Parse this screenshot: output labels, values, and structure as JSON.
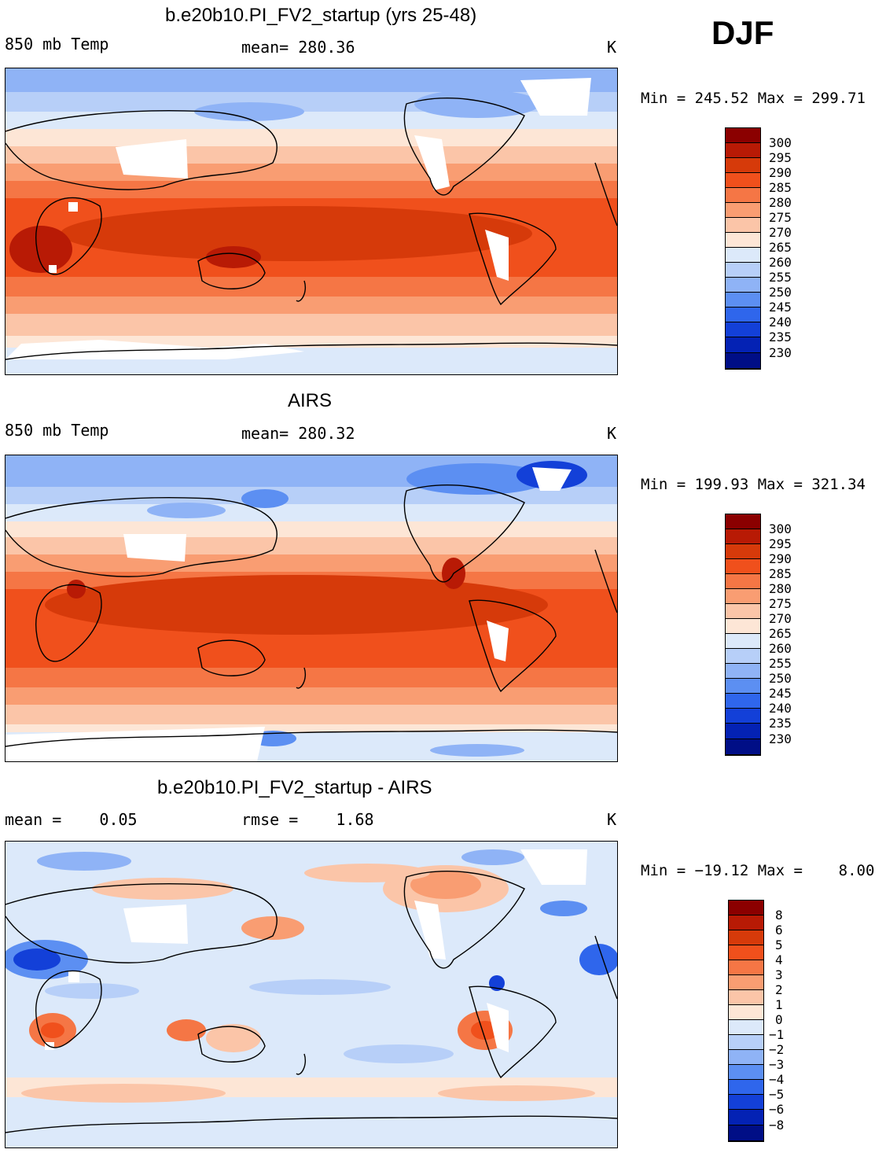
{
  "season": "DJF",
  "panels": [
    {
      "title": "b.e20b10.PI_FV2_startup (yrs 25-48)",
      "left_label": "850 mb Temp",
      "center_label": "mean= 280.36",
      "units": "K",
      "minmax": "Min = 245.52 Max = 299.71",
      "kind": "model"
    },
    {
      "title": "AIRS",
      "left_label": "850 mb Temp",
      "center_label": "mean= 280.32",
      "units": "K",
      "minmax": "Min = 199.93 Max = 321.34",
      "kind": "obs"
    },
    {
      "title": "b.e20b10.PI_FV2_startup - AIRS",
      "left_label": "mean =    0.05",
      "center_label": "rmse =    1.68",
      "units": "K",
      "minmax": "Min = −19.12 Max =    8.00",
      "kind": "diff"
    }
  ],
  "colorbars": {
    "temperature": {
      "labels": [
        "300",
        "295",
        "290",
        "285",
        "280",
        "275",
        "270",
        "265",
        "260",
        "255",
        "250",
        "245",
        "240",
        "235",
        "230"
      ],
      "colors": [
        "#8b0000",
        "#b81a05",
        "#d63a0a",
        "#f0501c",
        "#f57645",
        "#f99d72",
        "#fbc5a8",
        "#fde6d6",
        "#dce9fa",
        "#b7cff8",
        "#8fb3f6",
        "#5c8ff2",
        "#2f66ec",
        "#1340d8",
        "#0422b4",
        "#000e86"
      ]
    },
    "difference": {
      "labels": [
        "8",
        "6",
        "5",
        "4",
        "3",
        "2",
        "1",
        "0",
        "−1",
        "−2",
        "−3",
        "−4",
        "−5",
        "−6",
        "−8"
      ],
      "colors": [
        "#8b0000",
        "#b81a05",
        "#d63a0a",
        "#f0501c",
        "#f57645",
        "#f99d72",
        "#fbc5a8",
        "#fde6d6",
        "#dce9fa",
        "#b7cff8",
        "#8fb3f6",
        "#5c8ff2",
        "#2f66ec",
        "#1340d8",
        "#0422b4",
        "#000e86"
      ]
    }
  }
}
